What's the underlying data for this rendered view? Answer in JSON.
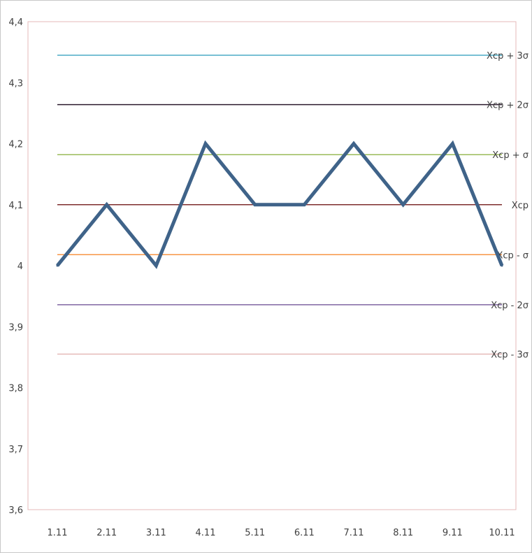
{
  "chart_data": {
    "type": "line",
    "categories": [
      "1.11",
      "2.11",
      "3.11",
      "4.11",
      "5.11",
      "6.11",
      "7.11",
      "8.11",
      "9.11",
      "10.11"
    ],
    "series": [
      {
        "values": [
          4.0,
          4.1,
          4.0,
          4.2,
          4.1,
          4.1,
          4.2,
          4.1,
          4.2,
          4.0
        ],
        "color": "#3f6389"
      }
    ],
    "control_lines": [
      {
        "name": "Xcp + 3σ",
        "value": 4.345,
        "color": "#4bacc6"
      },
      {
        "name": "Xcp + 2σ",
        "value": 4.264,
        "color": "#2b1b2e"
      },
      {
        "name": "Xcp + σ",
        "value": 4.182,
        "color": "#9bbb59"
      },
      {
        "name": "Xcp",
        "value": 4.1,
        "color": "#7f2d2d"
      },
      {
        "name": "Xcp - σ",
        "value": 4.018,
        "color": "#f79646"
      },
      {
        "name": "Xcp - 2σ",
        "value": 3.936,
        "color": "#8064a2"
      },
      {
        "name": "Xcp - 3σ",
        "value": 3.855,
        "color": "#e6b9b8"
      }
    ],
    "ylim": [
      3.6,
      4.4
    ],
    "yticks": [
      "3,6",
      "3,7",
      "3,8",
      "3,9",
      "4",
      "4,1",
      "4,2",
      "4,3",
      "4,4"
    ],
    "yticks_values": [
      3.6,
      3.7,
      3.8,
      3.9,
      4.0,
      4.1,
      4.2,
      4.3,
      4.4
    ],
    "plot_border_color": "#e6b9b8",
    "grid": false
  }
}
